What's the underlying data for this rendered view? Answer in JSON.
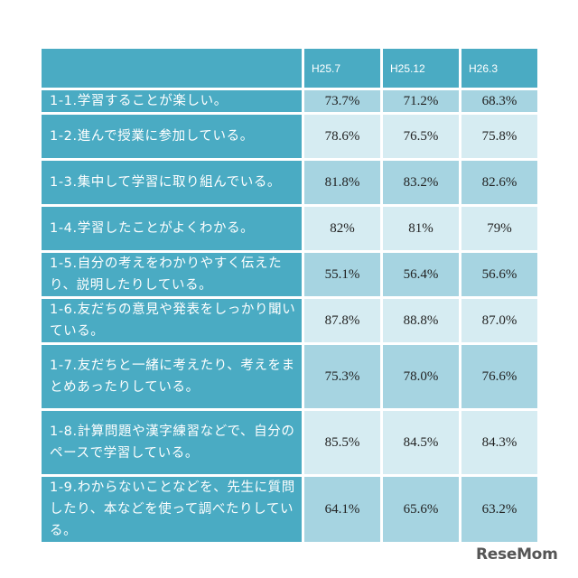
{
  "table": {
    "columns": [
      "H25.7",
      "H25.12",
      "H26.3"
    ],
    "rows": [
      {
        "label": "1-1.学習することが楽しい。",
        "values": [
          "73.7%",
          "71.2%",
          "68.3%"
        ],
        "style": "dark",
        "height": "r-h1"
      },
      {
        "label": "1-2.進んで授業に参加している。",
        "values": [
          "78.6%",
          "76.5%",
          "75.8%"
        ],
        "style": "light",
        "height": "r-h2"
      },
      {
        "label": "1-3.集中して学習に取り組んでいる。",
        "values": [
          "81.8%",
          "83.2%",
          "82.6%"
        ],
        "style": "dark",
        "height": "r-h2"
      },
      {
        "label": "1-4.学習したことがよくわかる。",
        "values": [
          "82%",
          "81%",
          "79%"
        ],
        "style": "light",
        "height": "r-h2"
      },
      {
        "label": "1-5.自分の考えをわかりやすく伝えたり、説明したりしている。",
        "values": [
          "55.1%",
          "56.4%",
          "56.6%"
        ],
        "style": "dark",
        "height": "r-h2"
      },
      {
        "label": "1-6.友だちの意見や発表をしっかり聞いている。",
        "values": [
          "87.8%",
          "88.8%",
          "87.0%"
        ],
        "style": "light",
        "height": "r-h2"
      },
      {
        "label": "1-7.友だちと一緒に考えたり、考えをまとめあったりしている。",
        "values": [
          "75.3%",
          "78.0%",
          "76.6%"
        ],
        "style": "dark",
        "height": "r-h3"
      },
      {
        "label": "1-8.計算問題や漢字練習などで、自分のペースで学習している。",
        "values": [
          "85.5%",
          "84.5%",
          "84.3%"
        ],
        "style": "light",
        "height": "r-h3"
      },
      {
        "label": "1-9.わからないことなどを、先生に質問したり、本などを使って調べたりしている。",
        "values": [
          "64.1%",
          "65.6%",
          "63.2%"
        ],
        "style": "dark",
        "height": "r-h3"
      }
    ]
  },
  "logo": "ReseMom"
}
